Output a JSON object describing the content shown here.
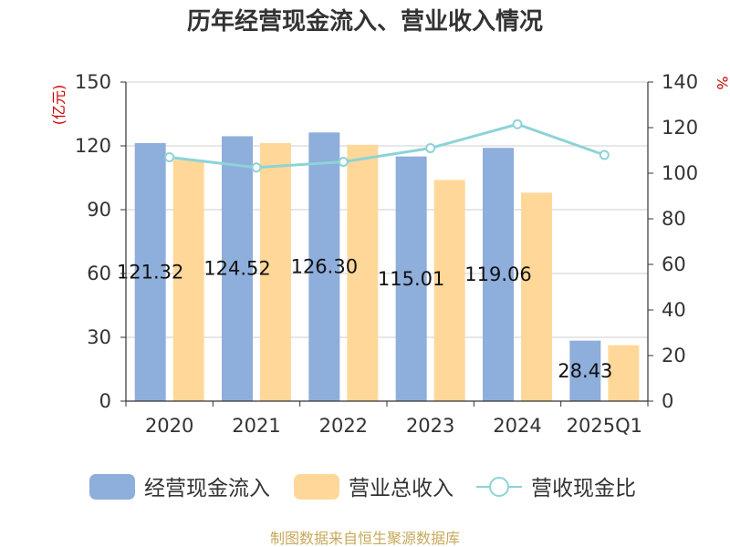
{
  "chart_data": {
    "type": "bar",
    "title": "历年经营现金流入、营业收入情况",
    "categories": [
      "2020",
      "2021",
      "2022",
      "2023",
      "2024",
      "2025Q1"
    ],
    "left_axis": {
      "unit": "(亿元)",
      "ylim": [
        0,
        150
      ],
      "ticks": [
        "0",
        "30",
        "60",
        "90",
        "120",
        "150"
      ]
    },
    "right_axis": {
      "unit": "%",
      "ylim": [
        0,
        140
      ],
      "ticks": [
        "0",
        "20",
        "40",
        "60",
        "80",
        "100",
        "120",
        "140"
      ]
    },
    "series": [
      {
        "name": "经营现金流入",
        "type": "bar",
        "axis": "left",
        "color": "#8eaedb",
        "values": [
          121.32,
          124.52,
          126.3,
          115.01,
          119.06,
          28.43
        ],
        "labels": [
          "121.32",
          "124.52",
          "126.30",
          "115.01",
          "119.06",
          "28.43"
        ]
      },
      {
        "name": "营业总收入",
        "type": "bar",
        "axis": "left",
        "color": "#ffd899",
        "values": [
          113.5,
          121.3,
          120.5,
          104.0,
          98.0,
          26.3
        ]
      },
      {
        "name": "营收现金比",
        "type": "line",
        "axis": "right",
        "color": "#8dd3d8",
        "values": [
          107,
          102.5,
          105,
          111,
          121.5,
          108
        ]
      }
    ],
    "grid": true,
    "legend_position": "bottom",
    "source": "制图数据来自恒生聚源数据库"
  }
}
